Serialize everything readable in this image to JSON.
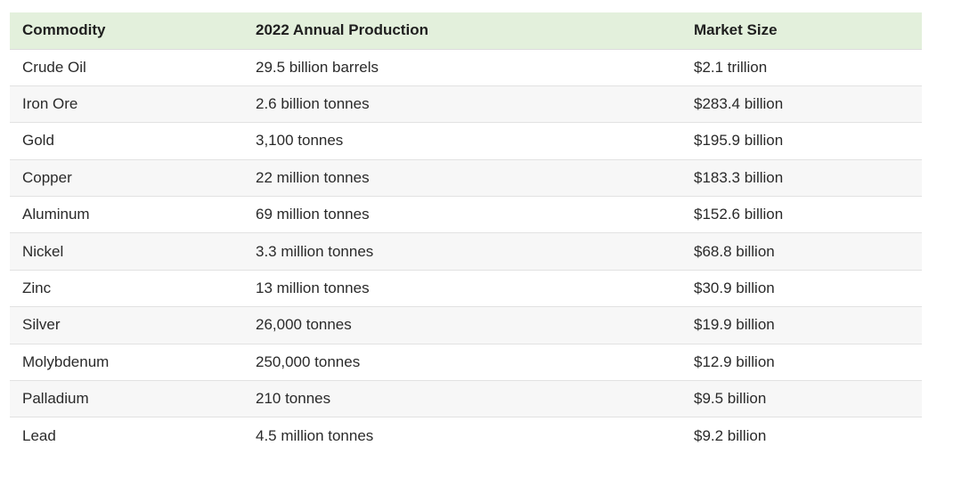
{
  "table": {
    "headers": [
      "Commodity",
      "2022 Annual Production",
      "Market Size"
    ],
    "rows": [
      [
        "Crude Oil",
        "29.5 billion barrels",
        "$2.1 trillion"
      ],
      [
        "Iron Ore",
        "2.6 billion tonnes",
        "$283.4 billion"
      ],
      [
        "Gold",
        "3,100 tonnes",
        "$195.9 billion"
      ],
      [
        "Copper",
        "22 million tonnes",
        "$183.3 billion"
      ],
      [
        "Aluminum",
        "69 million tonnes",
        "$152.6 billion"
      ],
      [
        "Nickel",
        "3.3 million tonnes",
        "$68.8 billion"
      ],
      [
        "Zinc",
        "13 million tonnes",
        "$30.9 billion"
      ],
      [
        "Silver",
        "26,000 tonnes",
        "$19.9 billion"
      ],
      [
        "Molybdenum",
        "250,000 tonnes",
        "$12.9 billion"
      ],
      [
        "Palladium",
        "210 tonnes",
        "$9.5 billion"
      ],
      [
        "Lead",
        "4.5 million tonnes",
        "$9.2 billion"
      ]
    ]
  },
  "colors": {
    "header_background": "#e3f0dc",
    "stripe_background": "#f7f7f7",
    "row_divider": "#e2e2e2"
  }
}
